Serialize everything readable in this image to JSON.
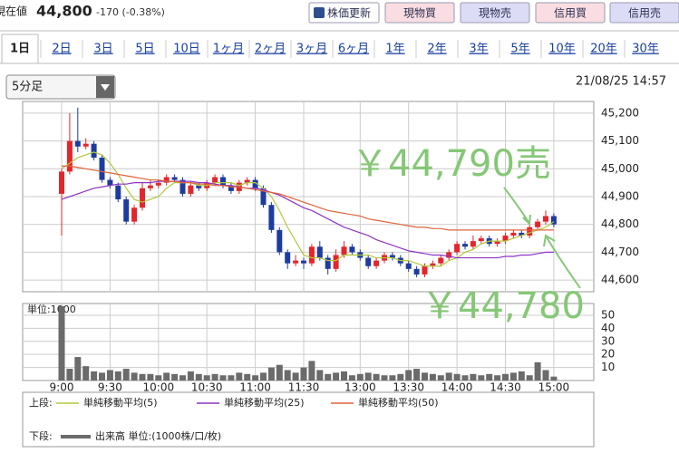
{
  "header": {
    "label": "現在値",
    "price": "44,800",
    "change": "-170 (-0.38%)",
    "buttons": [
      "株価更新",
      "現物買",
      "現物売",
      "信用買",
      "信用売"
    ]
  },
  "tabs": [
    "1日",
    "2日",
    "3日",
    "5日",
    "10日",
    "1ヶ月",
    "2ヶ月",
    "3ヶ月",
    "6ヶ月",
    "1年",
    "2年",
    "3年",
    "5年",
    "10年",
    "20年",
    "30年"
  ],
  "interval": "5分足",
  "timestamp": "21/08/25 14:57",
  "chart_data": [
    {
      "type": "candlestick",
      "legend_label": "上段:",
      "up_color": "#e3262c",
      "down_color": "#1d3c9e",
      "open": [
        44910,
        44990,
        45100,
        45080,
        45090,
        45040,
        44960,
        44940,
        44890,
        44810,
        44860,
        44930,
        44940,
        44950,
        44970,
        44960,
        44910,
        44940,
        44930,
        44950,
        44970,
        44940,
        44920,
        44950,
        44960,
        44930,
        44870,
        44780,
        44700,
        44660,
        44670,
        44660,
        44720,
        44680,
        44640,
        44690,
        44720,
        44700,
        44680,
        44650,
        44670,
        44690,
        44680,
        44660,
        44640,
        44620,
        44650,
        44660,
        44680,
        44700,
        44730,
        44720,
        44740,
        44750,
        44730,
        44740,
        44760,
        44770,
        44760,
        44790,
        44810,
        44830
      ],
      "high": [
        45000,
        45200,
        45220,
        45110,
        45100,
        45050,
        44970,
        44950,
        44900,
        44870,
        44950,
        44960,
        44960,
        44980,
        44980,
        44970,
        44950,
        44950,
        44960,
        44980,
        44980,
        44950,
        44960,
        44970,
        44970,
        44940,
        44880,
        44790,
        44710,
        44690,
        44680,
        44730,
        44740,
        44690,
        44710,
        44740,
        44730,
        44710,
        44690,
        44680,
        44700,
        44700,
        44690,
        44670,
        44650,
        44660,
        44670,
        44690,
        44710,
        44740,
        44740,
        44760,
        44760,
        44760,
        44750,
        44770,
        44780,
        44780,
        44800,
        44820,
        44850,
        44840
      ],
      "low": [
        44760,
        44980,
        45060,
        45070,
        45030,
        44950,
        44930,
        44880,
        44800,
        44800,
        44850,
        44920,
        44930,
        44940,
        44950,
        44900,
        44900,
        44920,
        44920,
        44940,
        44930,
        44910,
        44910,
        44940,
        44920,
        44860,
        44770,
        44690,
        44640,
        44650,
        44640,
        44650,
        44670,
        44620,
        44630,
        44680,
        44690,
        44670,
        44640,
        44640,
        44660,
        44670,
        44650,
        44630,
        44610,
        44610,
        44640,
        44650,
        44670,
        44690,
        44710,
        44710,
        44730,
        44720,
        44720,
        44730,
        44750,
        44750,
        44750,
        44780,
        44800,
        44790
      ],
      "close": [
        44990,
        45100,
        45080,
        45090,
        45040,
        44960,
        44940,
        44890,
        44810,
        44860,
        44930,
        44940,
        44950,
        44970,
        44960,
        44910,
        44940,
        44930,
        44950,
        44970,
        44940,
        44920,
        44950,
        44960,
        44930,
        44870,
        44780,
        44700,
        44660,
        44670,
        44660,
        44720,
        44680,
        44640,
        44690,
        44720,
        44700,
        44680,
        44650,
        44670,
        44690,
        44680,
        44660,
        44640,
        44620,
        44650,
        44660,
        44680,
        44700,
        44730,
        44720,
        44740,
        44750,
        44730,
        44740,
        44760,
        44770,
        44760,
        44790,
        44810,
        44830,
        44800
      ],
      "lines": [
        {
          "name": "単純移動平均(5)",
          "color": "#b3c83c",
          "values": [
            45000,
            45020,
            45040,
            45050,
            45060,
            45050,
            45020,
            44980,
            44930,
            44890,
            44880,
            44890,
            44900,
            44930,
            44950,
            44950,
            44950,
            44940,
            44940,
            44950,
            44950,
            44950,
            44940,
            44950,
            44950,
            44930,
            44900,
            44850,
            44790,
            44740,
            44690,
            44680,
            44680,
            44670,
            44670,
            44690,
            44690,
            44690,
            44690,
            44680,
            44680,
            44680,
            44670,
            44670,
            44660,
            44650,
            44650,
            44650,
            44670,
            44680,
            44700,
            44710,
            44730,
            44740,
            44740,
            44740,
            44750,
            44760,
            44770,
            44780,
            44790,
            44810
          ]
        },
        {
          "name": "単純移動平均(25)",
          "color": "#8e35c4",
          "values": [
            44890,
            44900,
            44910,
            44920,
            44930,
            44935,
            44940,
            44945,
            44945,
            44950,
            44950,
            44950,
            44955,
            44955,
            44955,
            44955,
            44955,
            44950,
            44950,
            44945,
            44940,
            44940,
            44935,
            44930,
            44930,
            44925,
            44915,
            44905,
            44890,
            44875,
            44860,
            44850,
            44835,
            44820,
            44805,
            44790,
            44780,
            44770,
            44760,
            44745,
            44735,
            44725,
            44715,
            44705,
            44700,
            44695,
            44690,
            44690,
            44685,
            44680,
            44680,
            44680,
            44680,
            44680,
            44680,
            44685,
            44685,
            44690,
            44690,
            44695,
            44700,
            44700
          ]
        },
        {
          "name": "単純移動平均(50)",
          "color": "#e0643c",
          "values": [
            45010,
            45010,
            45005,
            45000,
            44995,
            44990,
            44985,
            44980,
            44975,
            44970,
            44965,
            44960,
            44960,
            44955,
            44955,
            44950,
            44950,
            44945,
            44945,
            44940,
            44940,
            44935,
            44935,
            44930,
            44925,
            44920,
            44915,
            44910,
            44900,
            44890,
            44880,
            44870,
            44860,
            44850,
            44845,
            44840,
            44835,
            44830,
            44820,
            44815,
            44810,
            44805,
            44800,
            44795,
            44790,
            44790,
            44785,
            44785,
            44780,
            44780,
            44780,
            44780,
            44780,
            44780,
            44780,
            44780,
            44780,
            44780,
            44780,
            44780,
            44780,
            44780
          ]
        }
      ],
      "ylim": [
        44558,
        45242
      ],
      "yticks": [
        {
          "value": 44600,
          "label": "44,600"
        },
        {
          "value": 44700,
          "label": "44,700"
        },
        {
          "value": 44800,
          "label": "44,800"
        },
        {
          "value": 44900,
          "label": "44,900"
        },
        {
          "value": 45000,
          "label": "45,000"
        },
        {
          "value": 45100,
          "label": "45,100"
        },
        {
          "value": 45200,
          "label": "45,200"
        }
      ],
      "grid": true,
      "annotations": [
        {
          "text": "￥44,790売",
          "color": "#86c777"
        },
        {
          "text": "￥44,780",
          "color": "#86c777"
        }
      ]
    },
    {
      "type": "bar",
      "legend_label": "下段:",
      "unit_label": "単位:1000",
      "name": "出来高 単位:(1000株/口/枚)",
      "color": "#6b6b6b",
      "categories": [
        "9:00",
        null,
        null,
        null,
        null,
        null,
        "9:30",
        null,
        null,
        null,
        null,
        null,
        "10:00",
        null,
        null,
        null,
        null,
        null,
        "10:30",
        null,
        null,
        null,
        null,
        null,
        "11:00",
        null,
        null,
        null,
        null,
        null,
        "11:30",
        null,
        null,
        null,
        null,
        null,
        null,
        "13:00",
        null,
        null,
        null,
        null,
        null,
        "13:30",
        null,
        null,
        null,
        null,
        null,
        "14:00",
        null,
        null,
        null,
        null,
        null,
        "14:30",
        null,
        null,
        null,
        null,
        null,
        "15:00"
      ],
      "values": [
        57,
        9,
        18,
        11,
        7,
        6,
        8,
        7,
        9,
        6,
        5,
        5,
        4,
        6,
        5,
        4,
        7,
        5,
        4,
        5,
        4,
        4,
        6,
        5,
        4,
        6,
        10,
        12,
        8,
        6,
        10,
        15,
        8,
        5,
        6,
        7,
        4,
        5,
        6,
        5,
        4,
        4,
        5,
        8,
        9,
        6,
        5,
        4,
        6,
        5,
        4,
        5,
        4,
        5,
        4,
        5,
        6,
        7,
        4,
        14,
        8,
        3
      ],
      "ylim": [
        0,
        59
      ],
      "yticks": [
        10,
        20,
        30,
        40,
        50
      ],
      "grid": true
    }
  ]
}
